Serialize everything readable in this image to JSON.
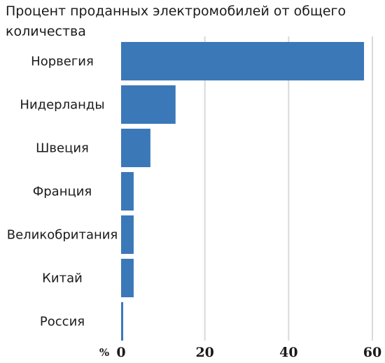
{
  "chart_data": {
    "type": "bar",
    "orientation": "horizontal",
    "title": "Процент проданных электромобилей от общего количества",
    "categories": [
      "Норвегия",
      "Нидерланды",
      "Швеция",
      "Франция",
      "Великобритания",
      "Китай",
      "Россия"
    ],
    "values": [
      58,
      13,
      7,
      3,
      3,
      3,
      0.5
    ],
    "xlabel": "%",
    "ylabel": "",
    "xlim": [
      0,
      60
    ],
    "xticks": [
      0,
      20,
      40,
      60
    ],
    "grid": true,
    "bar_color": "#3b78b8",
    "grid_color": "#d9d9d9"
  }
}
